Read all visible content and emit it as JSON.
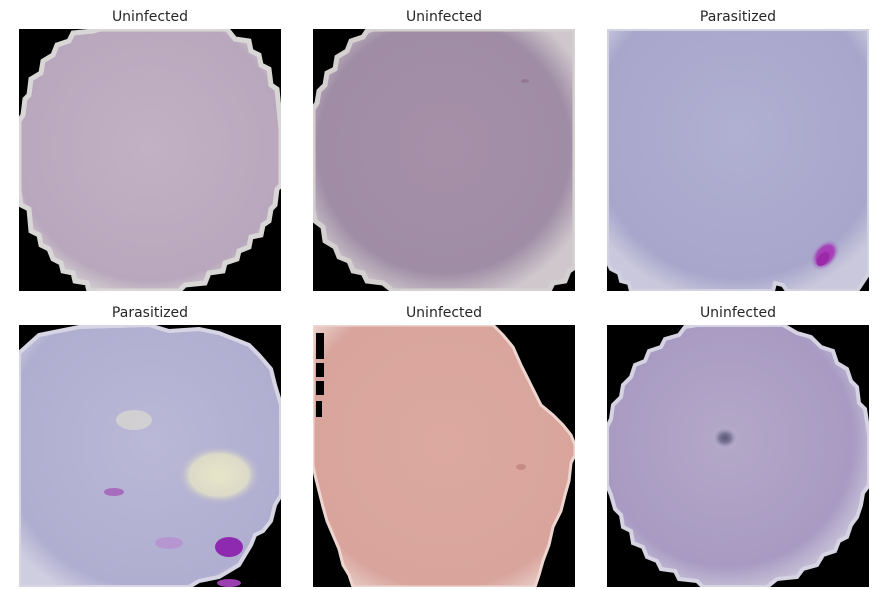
{
  "panels": [
    {
      "title": "Uninfected"
    },
    {
      "title": "Uninfected"
    },
    {
      "title": "Parasitized"
    },
    {
      "title": "Parasitized"
    },
    {
      "title": "Uninfected"
    },
    {
      "title": "Uninfected"
    }
  ],
  "colors": {
    "background": "#000000",
    "cell_mauve": "#b7a6bd",
    "cell_purple": "#a08ea8",
    "cell_blue_lilac": "#a8a8cc",
    "cell_lilac": "#b4b2d2",
    "cell_salmon": "#d9a69e",
    "cell_violet": "#a89ac2",
    "parasite_stain": "#9a3fb0"
  }
}
